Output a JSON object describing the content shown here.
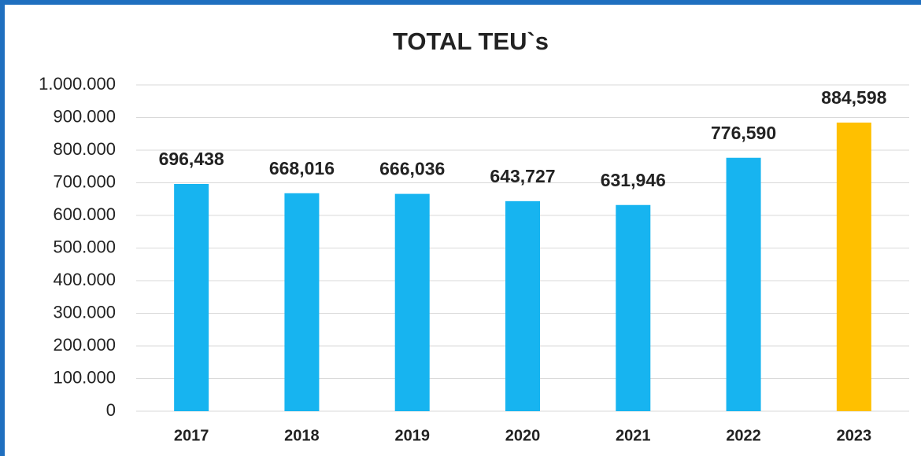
{
  "chart_data": {
    "type": "bar",
    "title": "TOTAL TEU`s",
    "categories": [
      "2017",
      "2018",
      "2019",
      "2020",
      "2021",
      "2022",
      "2023"
    ],
    "values": [
      696438,
      668016,
      666036,
      643727,
      631946,
      776590,
      884598
    ],
    "value_labels": [
      "696,438",
      "668,016",
      "666,036",
      "643,727",
      "631,946",
      "776,590",
      "884,598"
    ],
    "colors": [
      "#17b4f0",
      "#17b4f0",
      "#17b4f0",
      "#17b4f0",
      "#17b4f0",
      "#17b4f0",
      "#ffc000"
    ],
    "ylim": [
      0,
      1000000
    ],
    "yticks": [
      0,
      {
        "value": 100000,
        "label": "100.000"
      },
      {
        "value": 200000,
        "label": "200.000"
      },
      {
        "value": 300000,
        "label": "300.000"
      },
      {
        "value": 400000,
        "label": "400.000"
      },
      {
        "value": 500000,
        "label": "500.000"
      },
      {
        "value": 600000,
        "label": "600.000"
      },
      {
        "value": 700000,
        "label": "700.000"
      },
      {
        "value": 800000,
        "label": "800.000"
      },
      {
        "value": 900000,
        "label": "900.000"
      },
      {
        "value": 1000000,
        "label": "1.000.000"
      }
    ],
    "grid": true
  }
}
